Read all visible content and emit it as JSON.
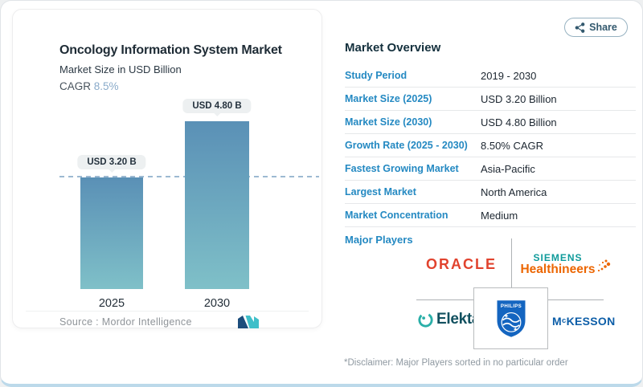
{
  "share": {
    "label": "Share"
  },
  "chart_data": {
    "type": "bar",
    "title": "Oncology Information System Market",
    "subtitle": "Market Size in USD Billion",
    "cagr_label": "CAGR",
    "cagr_value": "8.5%",
    "categories": [
      "2025",
      "2030"
    ],
    "values": [
      3.2,
      4.8
    ],
    "data_labels": [
      "USD 3.20 B",
      "USD 4.80 B"
    ],
    "unit": "USD Billion",
    "ylim": [
      0,
      5.2
    ],
    "grid": false,
    "reference_line": 3.2,
    "bar_gradient": [
      "#5a90b6",
      "#7fc0c8"
    ],
    "source_label": "Source :",
    "source_value": "Mordor Intelligence"
  },
  "overview": {
    "heading": "Market Overview",
    "rows": [
      {
        "label": "Study Period",
        "value": "2019 - 2030"
      },
      {
        "label": "Market Size (2025)",
        "value": "USD 3.20 Billion"
      },
      {
        "label": "Market Size (2030)",
        "value": "USD 4.80 Billion"
      },
      {
        "label": "Growth Rate (2025 - 2030)",
        "value": "8.50% CAGR"
      },
      {
        "label": "Fastest Growing Market",
        "value": "Asia-Pacific"
      },
      {
        "label": "Largest Market",
        "value": "North America"
      },
      {
        "label": "Market Concentration",
        "value": "Medium"
      }
    ],
    "major_players_label": "Major Players",
    "players": [
      "Oracle",
      "Siemens Healthineers",
      "Elekta",
      "Philips",
      "McKesson"
    ],
    "disclaimer": "*Disclaimer: Major Players sorted in no particular order"
  },
  "logos": {
    "oracle": "ORACLE",
    "siemens_line1": "SIEMENS",
    "siemens_line2": "Healthineers",
    "elekta": "Elekta",
    "philips": "PHILIPS",
    "mckesson_m": "M",
    "mckesson_c": "c",
    "mckesson_rest": "KESSON"
  },
  "colors": {
    "label_blue": "#2489c2",
    "value_dark": "#1c2630",
    "bar_top": "#5a90b6",
    "bar_bottom": "#7fc0c8",
    "dashed_reference": "#9db9d2",
    "cagr_value_blue": "#8aabca",
    "oracle_red": "#e1432e",
    "siemens_teal": "#0f9b9b",
    "healthineers_orange": "#ec6602",
    "elekta_teal": "#11505f",
    "philips_blue": "#1465c0",
    "mckesson_blue": "#0d5ea8",
    "bottom_accent": "#bcd9ea"
  }
}
